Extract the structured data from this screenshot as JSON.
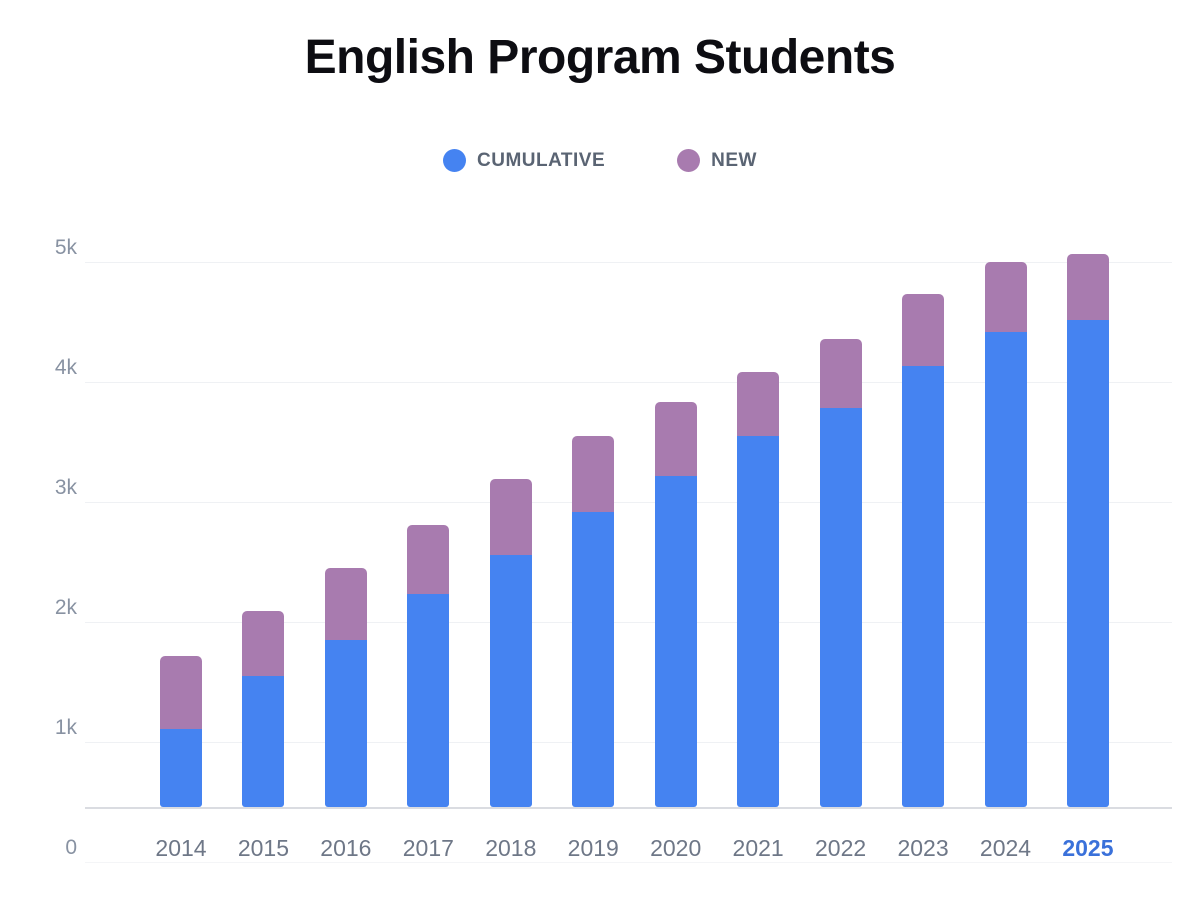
{
  "title": "English Program Students",
  "chart_data": {
    "type": "bar",
    "stacked": true,
    "title": "English Program Students",
    "xlabel": "",
    "ylabel": "",
    "categories": [
      "2014",
      "2015",
      "2016",
      "2017",
      "2018",
      "2019",
      "2020",
      "2021",
      "2022",
      "2023",
      "2024",
      "2025"
    ],
    "series": [
      {
        "name": "CUMULATIVE",
        "color": "#4583f1",
        "values": [
          1110,
          1550,
          1850,
          2230,
          2560,
          2920,
          3220,
          3550,
          3780,
          4130,
          4420,
          4520
        ]
      },
      {
        "name": "NEW",
        "color": "#a87baf",
        "values": [
          610,
          540,
          600,
          580,
          630,
          630,
          610,
          530,
          580,
          600,
          580,
          550
        ]
      }
    ],
    "totals": [
      1720,
      2090,
      2450,
      2810,
      3190,
      3550,
      3830,
      4080,
      4360,
      4730,
      5000,
      5070
    ],
    "ylim": [
      0,
      5500
    ],
    "y_ticks": [
      0,
      1000,
      2000,
      3000,
      4000,
      5000
    ],
    "y_tick_labels": [
      "0",
      "1k",
      "2k",
      "3k",
      "4k",
      "5k"
    ],
    "grid": true,
    "legend_position": "top-center",
    "highlighted_category": "2025"
  },
  "colors": {
    "cumulative_bar": "#4583f1",
    "new_bar": "#a87baf",
    "title_text": "#0d0d12",
    "axis_label_text": "#8892a2",
    "year_label_text": "#6e7787",
    "highlighted_year_text": "#3a71da",
    "legend_text": "#5a6473",
    "gridline": "#eff1f4",
    "baseline": "#dadce1",
    "zero_line": "#f4f5f7",
    "background": "#ffffff"
  }
}
